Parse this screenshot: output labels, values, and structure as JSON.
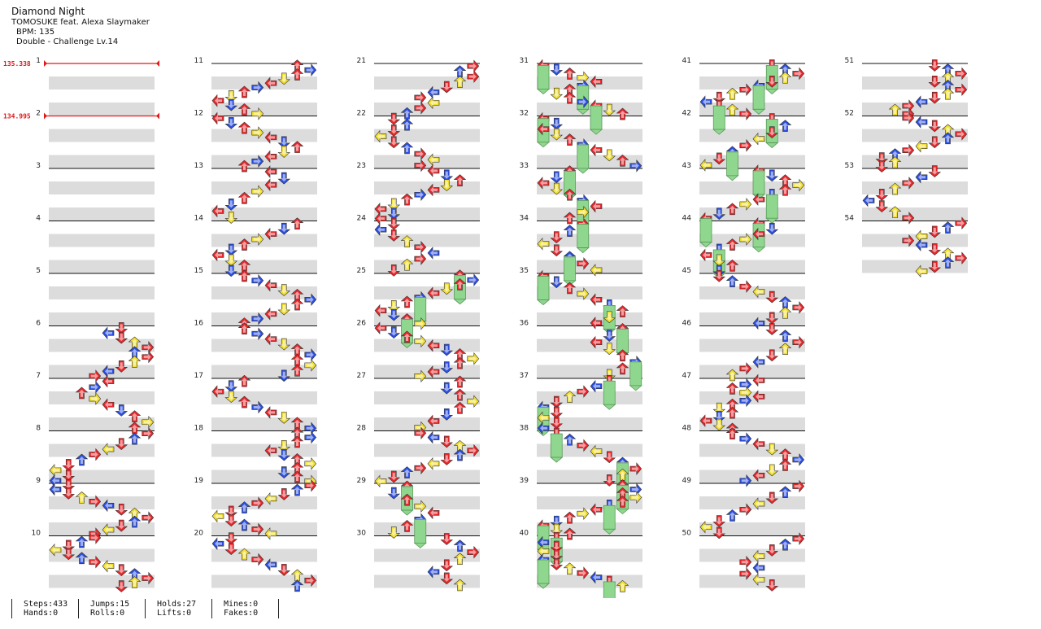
{
  "song": {
    "title": "Diamond Night",
    "artist": "TOMOSUKE feat. Alexa Slaymaker",
    "bpm_line": "BPM: 135",
    "difficulty_line": "Double - Challenge Lv.14"
  },
  "bpm_markers": [
    {
      "label": "135.338",
      "measure": 1
    },
    {
      "label": "134.995",
      "measure": 2
    }
  ],
  "measures": {
    "first": 1,
    "last": 54,
    "per_column": 10
  },
  "colors": {
    "quarter": "#e8262a",
    "eighth": "#2a4fe3",
    "sixteenth": "#f2df2e",
    "twentyfourth": "#9c2fd8",
    "hold": "#8fd68f",
    "band": "#dcdcdc",
    "bpm_line": "#e01818"
  },
  "note_icons": [
    "left-arrow-icon",
    "down-arrow-icon",
    "up-arrow-icon",
    "right-arrow-icon"
  ],
  "stats": {
    "steps": "Steps:433",
    "jumps": "Jumps:15",
    "holds": "Holds:27",
    "mines": "Mines:0",
    "hands": "Hands:0",
    "rolls": "Rolls:0",
    "lifts": "Lifts:0",
    "fakes": "Fakes:0"
  }
}
